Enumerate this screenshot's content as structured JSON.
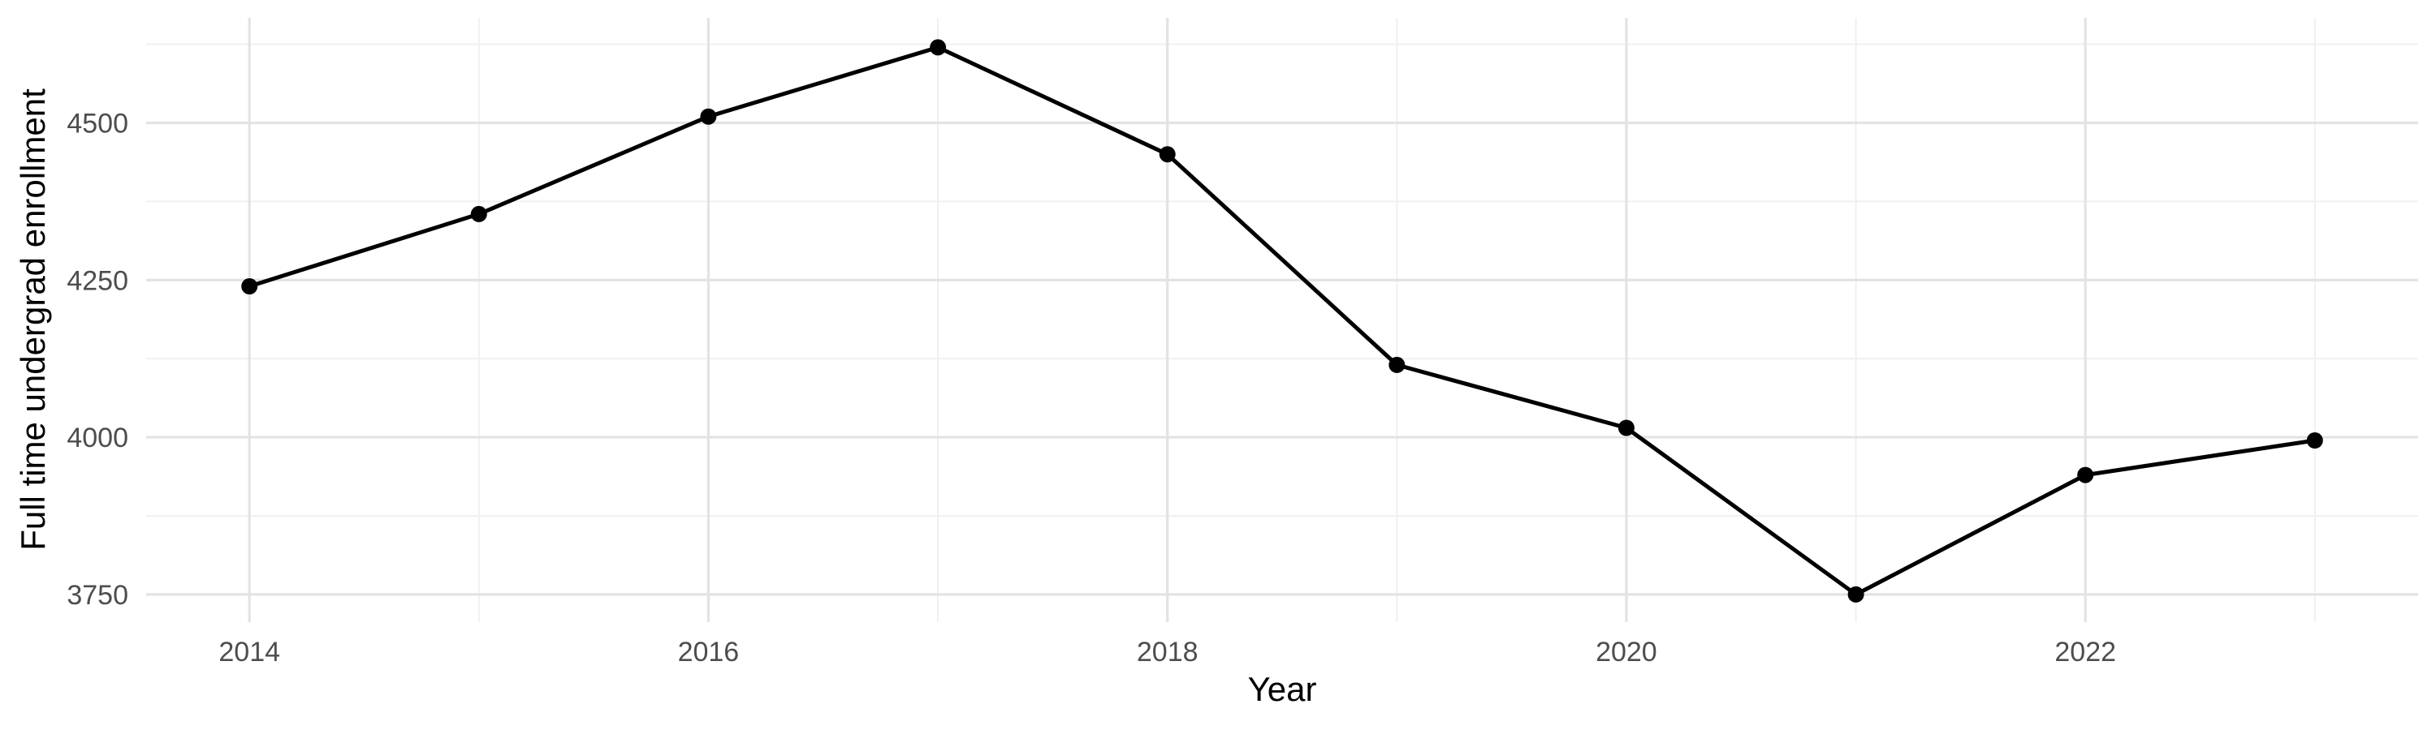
{
  "chart_data": {
    "type": "line",
    "title": "",
    "xlabel": "Year",
    "ylabel": "Full time undergrad enrollment",
    "x": [
      2014,
      2015,
      2016,
      2017,
      2018,
      2019,
      2020,
      2021,
      2022,
      2023
    ],
    "series": [
      {
        "name": "Full time undergrad enrollment",
        "values": [
          4240,
          4355,
          4510,
          4620,
          4450,
          4115,
          4015,
          3750,
          3940,
          3995
        ]
      }
    ],
    "x_ticks_major": [
      2014,
      2016,
      2018,
      2020,
      2022
    ],
    "x_ticks_minor": [
      2015,
      2017,
      2019,
      2021,
      2023
    ],
    "y_ticks_major": [
      3750,
      4000,
      4250,
      4500
    ],
    "y_ticks_minor": [
      3875,
      4125,
      4375,
      4625
    ],
    "x_domain": [
      2013.55,
      2023.45
    ],
    "y_domain": [
      3706,
      4667
    ],
    "grid": true,
    "legend_position": "none",
    "colors": {
      "line": "#000000",
      "point": "#000000",
      "grid_major": "#e3e3e3",
      "grid_minor": "#f0f0f0",
      "tick_label": "#4d4d4d",
      "axis_title": "#000000",
      "background": "#ffffff"
    },
    "line_width": 5,
    "point_radius": 10
  }
}
